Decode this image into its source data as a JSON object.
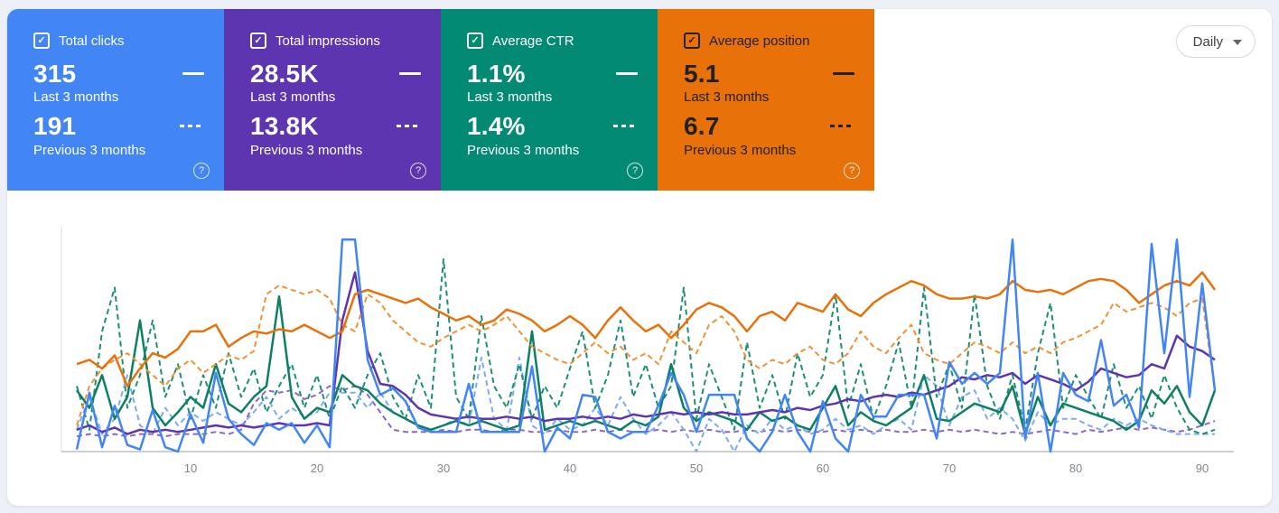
{
  "cards": [
    {
      "metric": "clicks",
      "label": "Total clicks",
      "value_current": "315",
      "period_current": "Last 3 months",
      "value_previous": "191",
      "period_previous": "Previous 3 months",
      "color": "#4285f4",
      "text_color": "#ffffff",
      "checked": true
    },
    {
      "metric": "impressions",
      "label": "Total impressions",
      "value_current": "28.5K",
      "period_current": "Last 3 months",
      "value_previous": "13.8K",
      "period_previous": "Previous 3 months",
      "color": "#5e35b1",
      "text_color": "#ffffff",
      "checked": true
    },
    {
      "metric": "ctr",
      "label": "Average CTR",
      "value_current": "1.1%",
      "period_current": "Last 3 months",
      "value_previous": "1.4%",
      "period_previous": "Previous 3 months",
      "color": "#028a74",
      "text_color": "#ffffff",
      "checked": true
    },
    {
      "metric": "position",
      "label": "Average position",
      "value_current": "5.1",
      "period_current": "Last 3 months",
      "value_previous": "6.7",
      "period_previous": "Previous 3 months",
      "color": "#e8710a",
      "text_color": "#212121",
      "checked": true
    }
  ],
  "granularity_select": {
    "value": "Daily"
  },
  "icons": {
    "check": "✓",
    "help": "?"
  },
  "colors": {
    "page_background": "#edf1f7",
    "panel_background": "#ffffff",
    "axis_left": "#dadce0",
    "axis_bottom": "#9aa0a6",
    "tick_label": "#80868b"
  },
  "chart_data": {
    "type": "line",
    "title": "",
    "xlabel": "",
    "ylabel": "",
    "x_unit": "day index of 3-month period",
    "x_range": [
      1,
      91
    ],
    "x_label_ticks": [
      10,
      20,
      30,
      40,
      50,
      60,
      70,
      80,
      90
    ],
    "y_axis": "unlabeled; values are relative 0-100 of plot height",
    "grid": false,
    "legend": "none (encoded in metric cards: solid = Last 3 months, dashed = Previous 3 months)",
    "series": [
      {
        "id": "impressions-previous",
        "name": "Impressions — Previous 3 months",
        "color": "#8a67c9",
        "dash": true,
        "width": 2,
        "values": [
          7,
          8,
          7,
          8,
          7,
          8,
          8,
          7,
          8,
          8,
          8,
          9,
          8,
          10,
          22,
          28,
          27,
          28,
          24,
          26,
          30,
          28,
          30,
          26,
          18,
          10,
          9,
          9,
          9,
          10,
          9,
          10,
          10,
          9,
          10,
          10,
          9,
          9,
          10,
          9,
          9,
          10,
          9,
          10,
          9,
          9,
          10,
          9,
          10,
          9,
          10,
          9,
          9,
          10,
          9,
          10,
          9,
          10,
          9,
          9,
          10,
          9,
          10,
          9,
          10,
          9,
          9,
          10,
          9,
          10,
          9,
          10,
          9,
          8,
          9,
          8,
          9,
          10,
          9,
          8,
          10,
          9,
          10,
          11,
          10,
          11,
          10,
          9,
          10,
          12,
          14
        ]
      },
      {
        "id": "clicks-previous",
        "name": "Clicks — Previous 3 months",
        "color": "#7baaf7",
        "dash": true,
        "width": 2,
        "values": [
          10,
          25,
          8,
          15,
          35,
          12,
          8,
          20,
          12,
          18,
          14,
          18,
          15,
          12,
          18,
          25,
          15,
          20,
          16,
          18,
          27,
          27,
          27,
          20,
          27,
          18,
          15,
          12,
          10,
          12,
          15,
          12,
          43,
          15,
          10,
          43,
          12,
          8,
          15,
          10,
          12,
          20,
          12,
          25,
          15,
          8,
          12,
          18,
          10,
          0,
          15,
          10,
          0,
          12,
          8,
          15,
          10,
          12,
          8,
          10,
          15,
          10,
          12,
          8,
          12,
          15,
          10,
          35,
          30,
          12,
          25,
          28,
          15,
          20,
          15,
          5,
          18,
          12,
          15,
          15,
          12,
          10,
          15,
          12,
          15,
          12,
          10,
          8,
          8,
          8,
          8
        ]
      },
      {
        "id": "ctr-previous",
        "name": "CTR — Previous 3 months",
        "color": "#1d8f74",
        "dash": true,
        "width": 2,
        "values": [
          30,
          10,
          55,
          75,
          20,
          35,
          60,
          25,
          40,
          15,
          35,
          20,
          45,
          25,
          38,
          18,
          30,
          40,
          20,
          35,
          15,
          30,
          20,
          35,
          45,
          25,
          15,
          35,
          20,
          88,
          25,
          15,
          62,
          30,
          20,
          40,
          15,
          30,
          20,
          38,
          55,
          20,
          35,
          60,
          25,
          40,
          20,
          30,
          75,
          15,
          40,
          25,
          10,
          50,
          20,
          35,
          15,
          45,
          25,
          35,
          72,
          20,
          40,
          15,
          30,
          50,
          20,
          75,
          25,
          40,
          20,
          72,
          30,
          15,
          35,
          10,
          45,
          68,
          20,
          35,
          25,
          15,
          40,
          20,
          30,
          15,
          35,
          20,
          10,
          8,
          10
        ]
      },
      {
        "id": "ctr-current",
        "name": "CTR — Last 3 months",
        "color": "#0d8064",
        "dash": false,
        "width": 2.5,
        "values": [
          28,
          20,
          35,
          15,
          25,
          60,
          20,
          12,
          18,
          25,
          20,
          40,
          22,
          18,
          25,
          30,
          71,
          25,
          15,
          20,
          18,
          35,
          30,
          28,
          22,
          18,
          15,
          12,
          10,
          12,
          14,
          12,
          14,
          12,
          10,
          12,
          55,
          10,
          12,
          14,
          12,
          14,
          12,
          10,
          14,
          12,
          16,
          40,
          20,
          14,
          18,
          16,
          14,
          10,
          18,
          14,
          16,
          12,
          10,
          20,
          30,
          12,
          18,
          14,
          12,
          16,
          20,
          35,
          15,
          14,
          18,
          22,
          20,
          18,
          30,
          8,
          25,
          12,
          22,
          20,
          18,
          16,
          14,
          10,
          14,
          28,
          22,
          30,
          18,
          12,
          28
        ]
      },
      {
        "id": "impressions-current",
        "name": "Impressions — Last 3 months",
        "color": "#5e35b1",
        "dash": false,
        "width": 2.5,
        "values": [
          10,
          12,
          9,
          11,
          8,
          10,
          9,
          10,
          9,
          10,
          11,
          12,
          11,
          12,
          11,
          12,
          13,
          12,
          12,
          13,
          12,
          60,
          82,
          46,
          31,
          30,
          26,
          20,
          17,
          16,
          15,
          16,
          15,
          15,
          16,
          15,
          16,
          14,
          15,
          15,
          16,
          15,
          16,
          15,
          17,
          16,
          17,
          18,
          17,
          18,
          17,
          18,
          17,
          17,
          18,
          19,
          18,
          20,
          19,
          21,
          22,
          24,
          23,
          25,
          26,
          25,
          27,
          26,
          28,
          30,
          34,
          33,
          35,
          34,
          36,
          31,
          35,
          33,
          31,
          28,
          32,
          38,
          36,
          34,
          35,
          40,
          38,
          53,
          48,
          46,
          42
        ]
      },
      {
        "id": "position-previous",
        "name": "Position — Previous 3 months",
        "color": "#ef9234",
        "dash": true,
        "width": 2,
        "values": [
          12,
          30,
          38,
          42,
          45,
          40,
          35,
          30,
          38,
          42,
          36,
          40,
          44,
          42,
          46,
          72,
          76,
          74,
          72,
          74,
          70,
          58,
          55,
          72,
          68,
          60,
          55,
          50,
          48,
          52,
          55,
          58,
          55,
          58,
          62,
          55,
          48,
          45,
          42,
          40,
          45,
          50,
          45,
          48,
          42,
          45,
          40,
          55,
          50,
          45,
          58,
          62,
          55,
          42,
          38,
          42,
          40,
          45,
          48,
          42,
          40,
          45,
          55,
          48,
          45,
          52,
          58,
          45,
          42,
          40,
          45,
          50,
          48,
          45,
          50,
          45,
          48,
          45,
          50,
          52,
          55,
          58,
          68,
          64,
          66,
          68,
          66,
          62,
          68,
          70,
          28
        ]
      },
      {
        "id": "position-current",
        "name": "Position — Last 3 months",
        "color": "#e8710a",
        "dash": false,
        "width": 2.5,
        "values": [
          40,
          42,
          38,
          44,
          30,
          38,
          45,
          43,
          47,
          55,
          55,
          58,
          48,
          52,
          55,
          54,
          56,
          55,
          58,
          55,
          52,
          55,
          72,
          74,
          72,
          70,
          68,
          70,
          66,
          63,
          60,
          62,
          58,
          60,
          65,
          63,
          60,
          55,
          58,
          62,
          58,
          52,
          60,
          66,
          60,
          55,
          58,
          52,
          58,
          65,
          68,
          66,
          62,
          55,
          62,
          64,
          60,
          68,
          66,
          64,
          72,
          65,
          62,
          68,
          72,
          75,
          78,
          76,
          72,
          70,
          70,
          71,
          70,
          72,
          78,
          74,
          73,
          74,
          72,
          75,
          78,
          79,
          78,
          74,
          68,
          72,
          76,
          78,
          76,
          82,
          74
        ]
      },
      {
        "id": "clicks-current",
        "name": "Clicks — Last 3 months",
        "color": "#4285f4",
        "dash": false,
        "width": 2.5,
        "values": [
          1,
          27,
          2,
          21,
          3,
          1,
          19,
          2,
          0,
          17,
          4,
          36,
          15,
          8,
          3,
          13,
          10,
          13,
          4,
          12,
          2,
          97,
          97,
          42,
          26,
          29,
          23,
          11,
          9,
          9,
          9,
          31,
          9,
          9,
          9,
          9,
          39,
          0,
          11,
          6,
          26,
          25,
          9,
          6,
          9,
          9,
          21,
          36,
          26,
          9,
          26,
          26,
          26,
          6,
          0,
          9,
          26,
          9,
          0,
          23,
          6,
          0,
          26,
          16,
          16,
          26,
          26,
          26,
          6,
          41,
          31,
          36,
          31,
          36,
          97,
          6,
          36,
          0,
          36,
          26,
          23,
          51,
          21,
          26,
          11,
          95,
          45,
          97,
          25,
          77,
          28
        ]
      }
    ]
  }
}
